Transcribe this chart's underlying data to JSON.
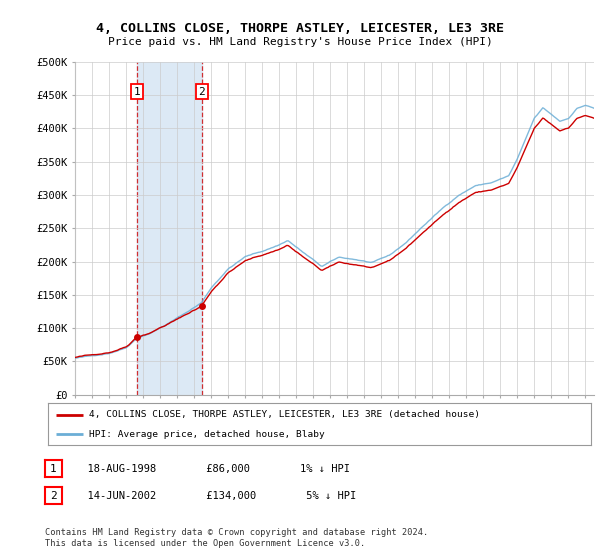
{
  "title_line1": "4, COLLINS CLOSE, THORPE ASTLEY, LEICESTER, LE3 3RE",
  "title_line2": "Price paid vs. HM Land Registry's House Price Index (HPI)",
  "ylabel_ticks": [
    "£0",
    "£50K",
    "£100K",
    "£150K",
    "£200K",
    "£250K",
    "£300K",
    "£350K",
    "£400K",
    "£450K",
    "£500K"
  ],
  "ytick_values": [
    0,
    50000,
    100000,
    150000,
    200000,
    250000,
    300000,
    350000,
    400000,
    450000,
    500000
  ],
  "ylim": [
    0,
    500000
  ],
  "xlim_start": 1995.0,
  "xlim_end": 2025.5,
  "purchase1_date": 1998.625,
  "purchase1_price": 86000,
  "purchase1_label": "1",
  "purchase2_date": 2002.45,
  "purchase2_price": 134000,
  "purchase2_label": "2",
  "hpi_color": "#6baed6",
  "price_color": "#cc0000",
  "shading_color": "#dce9f5",
  "legend_label1": "4, COLLINS CLOSE, THORPE ASTLEY, LEICESTER, LE3 3RE (detached house)",
  "legend_label2": "HPI: Average price, detached house, Blaby",
  "table_row1": [
    "1",
    "18-AUG-1998",
    "£86,000",
    "1% ↓ HPI"
  ],
  "table_row2": [
    "2",
    "14-JUN-2002",
    "£134,000",
    "5% ↓ HPI"
  ],
  "footnote": "Contains HM Land Registry data © Crown copyright and database right 2024.\nThis data is licensed under the Open Government Licence v3.0.",
  "background_color": "#ffffff",
  "grid_color": "#cccccc"
}
